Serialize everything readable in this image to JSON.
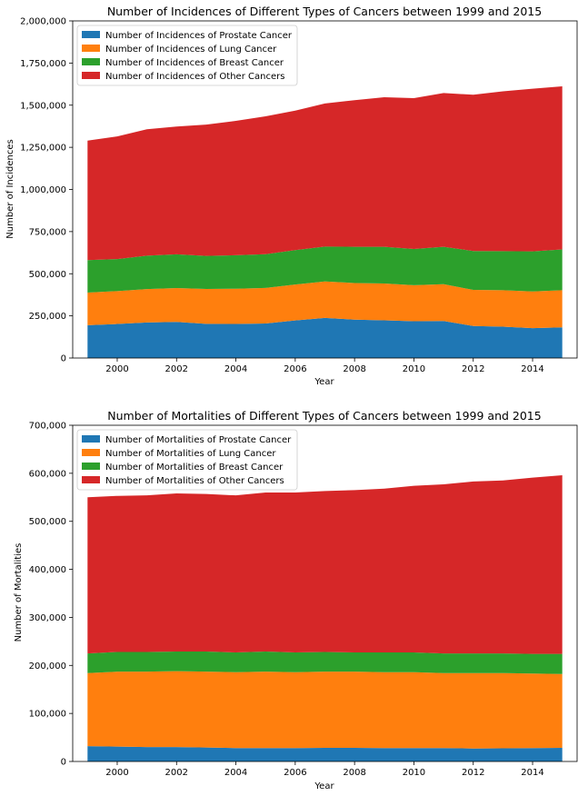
{
  "chart_data": [
    {
      "type": "area",
      "stacked": true,
      "title": "Number of Incidences of Different Types of Cancers between 1999 and 2015",
      "xlabel": "Year",
      "ylabel": "Number of Incidences",
      "xlim": [
        1998.5,
        2015.5
      ],
      "ylim": [
        0,
        2000000
      ],
      "x_ticks": [
        2000,
        2002,
        2004,
        2006,
        2008,
        2010,
        2012,
        2014
      ],
      "x_tick_labels": [
        "2000",
        "2002",
        "2004",
        "2006",
        "2008",
        "2010",
        "2012",
        "2014"
      ],
      "y_ticks": [
        0,
        250000,
        500000,
        750000,
        1000000,
        1250000,
        1500000,
        1750000,
        2000000
      ],
      "y_tick_labels": [
        "0",
        "250,000",
        "500,000",
        "750,000",
        "1,000,000",
        "1,250,000",
        "1,500,000",
        "1,750,000",
        "2,000,000"
      ],
      "grid": false,
      "legend_position": "top-left",
      "x": [
        1999,
        2000,
        2001,
        2002,
        2003,
        2004,
        2005,
        2006,
        2007,
        2008,
        2009,
        2010,
        2011,
        2012,
        2013,
        2014,
        2015
      ],
      "series": [
        {
          "name": "Number of Incidences of Prostate Cancer",
          "color": "#1f77b4",
          "values": [
            195000,
            202000,
            211000,
            214000,
            203000,
            202000,
            205000,
            223000,
            238000,
            228000,
            224000,
            218000,
            220000,
            190000,
            186000,
            177000,
            182000
          ]
        },
        {
          "name": "Number of Incidences of Lung Cancer",
          "color": "#ff7f0e",
          "values": [
            193000,
            195000,
            198000,
            201000,
            207000,
            209000,
            211000,
            213000,
            216000,
            217000,
            218000,
            214000,
            218000,
            214000,
            216000,
            218000,
            220000
          ]
        },
        {
          "name": "Number of Incidences of Breast Cancer",
          "color": "#2ca02c",
          "values": [
            193000,
            190000,
            198000,
            200000,
            196000,
            199000,
            200000,
            204000,
            207000,
            215000,
            218000,
            215000,
            222000,
            231000,
            232000,
            238000,
            242000
          ]
        },
        {
          "name": "Number of Incidences of Other Cancers",
          "color": "#d62728",
          "values": [
            709000,
            728000,
            750000,
            758000,
            779000,
            797000,
            818000,
            828000,
            849000,
            870000,
            887000,
            895000,
            912000,
            927000,
            948000,
            965000,
            968000
          ]
        }
      ]
    },
    {
      "type": "area",
      "stacked": true,
      "title": "Number of Mortalities of Different Types of Cancers between 1999 and 2015",
      "xlabel": "Year",
      "ylabel": "Number of Mortalities",
      "xlim": [
        1998.5,
        2015.5
      ],
      "ylim": [
        0,
        700000
      ],
      "x_ticks": [
        2000,
        2002,
        2004,
        2006,
        2008,
        2010,
        2012,
        2014
      ],
      "x_tick_labels": [
        "2000",
        "2002",
        "2004",
        "2006",
        "2008",
        "2010",
        "2012",
        "2014"
      ],
      "y_ticks": [
        0,
        100000,
        200000,
        300000,
        400000,
        500000,
        600000,
        700000
      ],
      "y_tick_labels": [
        "0",
        "100,000",
        "200,000",
        "300,000",
        "400,000",
        "500,000",
        "600,000",
        "700,000"
      ],
      "grid": false,
      "legend_position": "top-left",
      "x": [
        1999,
        2000,
        2001,
        2002,
        2003,
        2004,
        2005,
        2006,
        2007,
        2008,
        2009,
        2010,
        2011,
        2012,
        2013,
        2014,
        2015
      ],
      "series": [
        {
          "name": "Number of Mortalities of Prostate Cancer",
          "color": "#1f77b4",
          "values": [
            32000,
            31000,
            30000,
            30000,
            29000,
            28000,
            28000,
            28000,
            28500,
            28500,
            28000,
            28000,
            28000,
            27000,
            27500,
            28000,
            28500
          ]
        },
        {
          "name": "Number of Mortalities of Lung Cancer",
          "color": "#ff7f0e",
          "values": [
            152000,
            156000,
            157000,
            158000,
            158000,
            158000,
            159000,
            158000,
            158500,
            158500,
            158000,
            158000,
            156000,
            157000,
            156500,
            155000,
            153500
          ]
        },
        {
          "name": "Number of Mortalities of Breast Cancer",
          "color": "#2ca02c",
          "values": [
            41000,
            41000,
            41000,
            41000,
            42000,
            41000,
            42000,
            41000,
            41000,
            40000,
            41000,
            41000,
            41000,
            41000,
            41000,
            41000,
            42000
          ]
        },
        {
          "name": "Number of Mortalities of Other Cancers",
          "color": "#d62728",
          "values": [
            325000,
            325000,
            326000,
            329000,
            328000,
            327000,
            331000,
            333000,
            335000,
            338000,
            341000,
            347000,
            352000,
            358000,
            360000,
            367000,
            372000
          ]
        }
      ]
    }
  ]
}
